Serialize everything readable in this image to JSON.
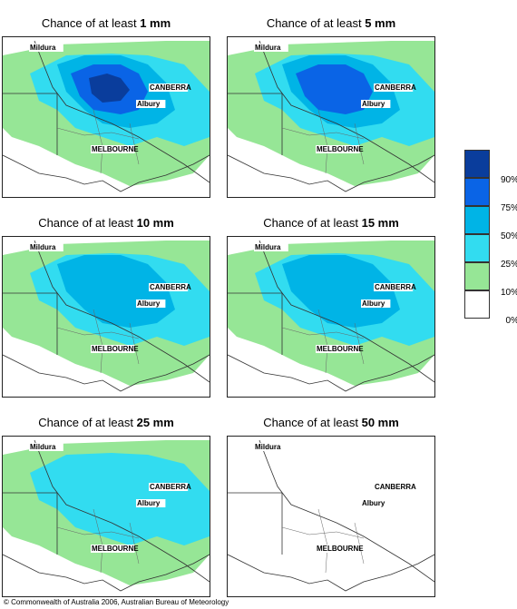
{
  "panels": [
    {
      "prefix": "Chance of at least ",
      "amount": "1 mm",
      "level": 5
    },
    {
      "prefix": "Chance of at least ",
      "amount": "5 mm",
      "level": 4
    },
    {
      "prefix": "Chance of at least ",
      "amount": "10 mm",
      "level": 3
    },
    {
      "prefix": "Chance of at least ",
      "amount": "15 mm",
      "level": 3
    },
    {
      "prefix": "Chance of at least ",
      "amount": "25 mm",
      "level": 2
    },
    {
      "prefix": "Chance of at least ",
      "amount": "50 mm",
      "level": 0
    }
  ],
  "cities": {
    "mildura": "Mildura",
    "canberra": "CANBERRA",
    "albury": "Albury",
    "melbourne": "MELBOURNE"
  },
  "legend": [
    {
      "label": "90%",
      "color": "#0a3d9c"
    },
    {
      "label": "75%",
      "color": "#0a64e6"
    },
    {
      "label": "50%",
      "color": "#00b4e6"
    },
    {
      "label": "25%",
      "color": "#32dcf0"
    },
    {
      "label": "10%",
      "color": "#96e696"
    },
    {
      "label": "0%",
      "color": "#ffffff"
    }
  ],
  "copyright": "© Commonwealth of Australia 2006, Australian Bureau of Meteorology"
}
